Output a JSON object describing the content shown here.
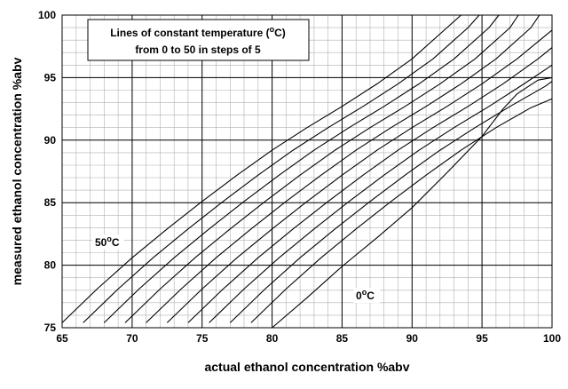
{
  "chart_data": {
    "type": "line",
    "title": "",
    "xlabel": "actual ethanol concentration %abv",
    "ylabel": "measured ethanol concentration %abv",
    "xlim": [
      65,
      100
    ],
    "ylim": [
      75,
      100
    ],
    "x_ticks": [
      "65",
      "70",
      "75",
      "80",
      "85",
      "90",
      "95",
      "100"
    ],
    "y_ticks": [
      "75",
      "80",
      "85",
      "90",
      "95",
      "100"
    ],
    "grid": true,
    "legend_box": {
      "line1_prefix": "Lines of constant temperature (",
      "line1_sup": "o",
      "line1_suffix": "C)",
      "line2": "from 0 to 50 in steps of 5"
    },
    "annotations": {
      "hot": {
        "num": "50",
        "sup": "o",
        "unit": "C"
      },
      "cold": {
        "num": "0",
        "sup": "o",
        "unit": "C"
      }
    },
    "colors": {
      "grid": "#b0b0b0",
      "major_grid": "#000000",
      "line": "#000000",
      "background": "#ffffff"
    },
    "series": [
      {
        "x": [
          65,
          67.5,
          70,
          72.5,
          75,
          77.5,
          80,
          82.5,
          85,
          87.5,
          90,
          92.5,
          93.5
        ],
        "y": [
          75.4,
          78.1,
          80.6,
          82.9,
          85.1,
          87.2,
          89.2,
          91.0,
          92.7,
          94.5,
          96.5,
          99.0,
          100
        ]
      },
      {
        "x": [
          66.5,
          69,
          71.5,
          74,
          76.5,
          79,
          81.5,
          84,
          86.5,
          89,
          91.5,
          94,
          94.8
        ],
        "y": [
          75.4,
          78.1,
          80.6,
          82.9,
          85.1,
          87.2,
          89.2,
          91.0,
          92.7,
          94.5,
          96.5,
          99.0,
          100
        ]
      },
      {
        "x": [
          68,
          70.5,
          73,
          75.5,
          78,
          80.5,
          83,
          85.5,
          88,
          90.5,
          93,
          95.5,
          96.2
        ],
        "y": [
          75.4,
          78.1,
          80.6,
          82.9,
          85.1,
          87.2,
          89.2,
          91.0,
          92.7,
          94.5,
          96.5,
          99.0,
          100
        ]
      },
      {
        "x": [
          69.5,
          72,
          74.5,
          77,
          79.5,
          82,
          84.5,
          87,
          89.5,
          92,
          94.5,
          97,
          97.6
        ],
        "y": [
          75.4,
          78.1,
          80.6,
          82.9,
          85.1,
          87.2,
          89.2,
          91.0,
          92.7,
          94.5,
          96.5,
          99.0,
          100
        ]
      },
      {
        "x": [
          71,
          73.5,
          76,
          78.5,
          81,
          83.5,
          86,
          88.5,
          91,
          93.5,
          96,
          98.5,
          99.1
        ],
        "y": [
          75.4,
          78.1,
          80.6,
          82.9,
          85.1,
          87.2,
          89.2,
          91.0,
          92.7,
          94.5,
          96.5,
          99.0,
          100
        ]
      },
      {
        "x": [
          72.5,
          75,
          77.5,
          80,
          82.5,
          85,
          87.5,
          90,
          92.5,
          95,
          97.5,
          100
        ],
        "y": [
          75.4,
          78.1,
          80.6,
          82.9,
          85.1,
          87.2,
          89.2,
          91.0,
          92.7,
          94.5,
          96.5,
          98.8
        ]
      },
      {
        "x": [
          74,
          76.5,
          79,
          81.5,
          84,
          86.5,
          89,
          91.5,
          94,
          96.5,
          99,
          100
        ],
        "y": [
          75.4,
          78.1,
          80.6,
          82.9,
          85.1,
          87.2,
          89.2,
          91.0,
          92.7,
          94.5,
          96.5,
          97.4
        ]
      },
      {
        "x": [
          75.5,
          78,
          80.5,
          83,
          85.5,
          88,
          90.5,
          93,
          95.5,
          98,
          100
        ],
        "y": [
          75.4,
          78.1,
          80.6,
          82.9,
          85.1,
          87.2,
          89.2,
          91.0,
          92.7,
          94.5,
          96.0
        ]
      },
      {
        "x": [
          77,
          79.5,
          82,
          84.5,
          87,
          89.5,
          92,
          94.5,
          97,
          99.5,
          100
        ],
        "y": [
          75.4,
          78.1,
          80.6,
          82.9,
          85.1,
          87.2,
          89.2,
          91.0,
          92.7,
          94.3,
          94.7
        ]
      },
      {
        "x": [
          78.5,
          81,
          83.5,
          86,
          88.5,
          91,
          93.5,
          96,
          98.5,
          100
        ],
        "y": [
          75.4,
          78.1,
          80.6,
          82.9,
          85.1,
          87.2,
          89.2,
          91.0,
          92.6,
          93.3
        ]
      },
      {
        "x": [
          80,
          82.5,
          85,
          87.5,
          90,
          92.5,
          95,
          96.5,
          97.5,
          99,
          100
        ],
        "y": [
          75.0,
          77.4,
          79.9,
          82.2,
          84.6,
          87.4,
          90.3,
          92.5,
          93.7,
          94.8,
          95.0
        ]
      }
    ]
  }
}
